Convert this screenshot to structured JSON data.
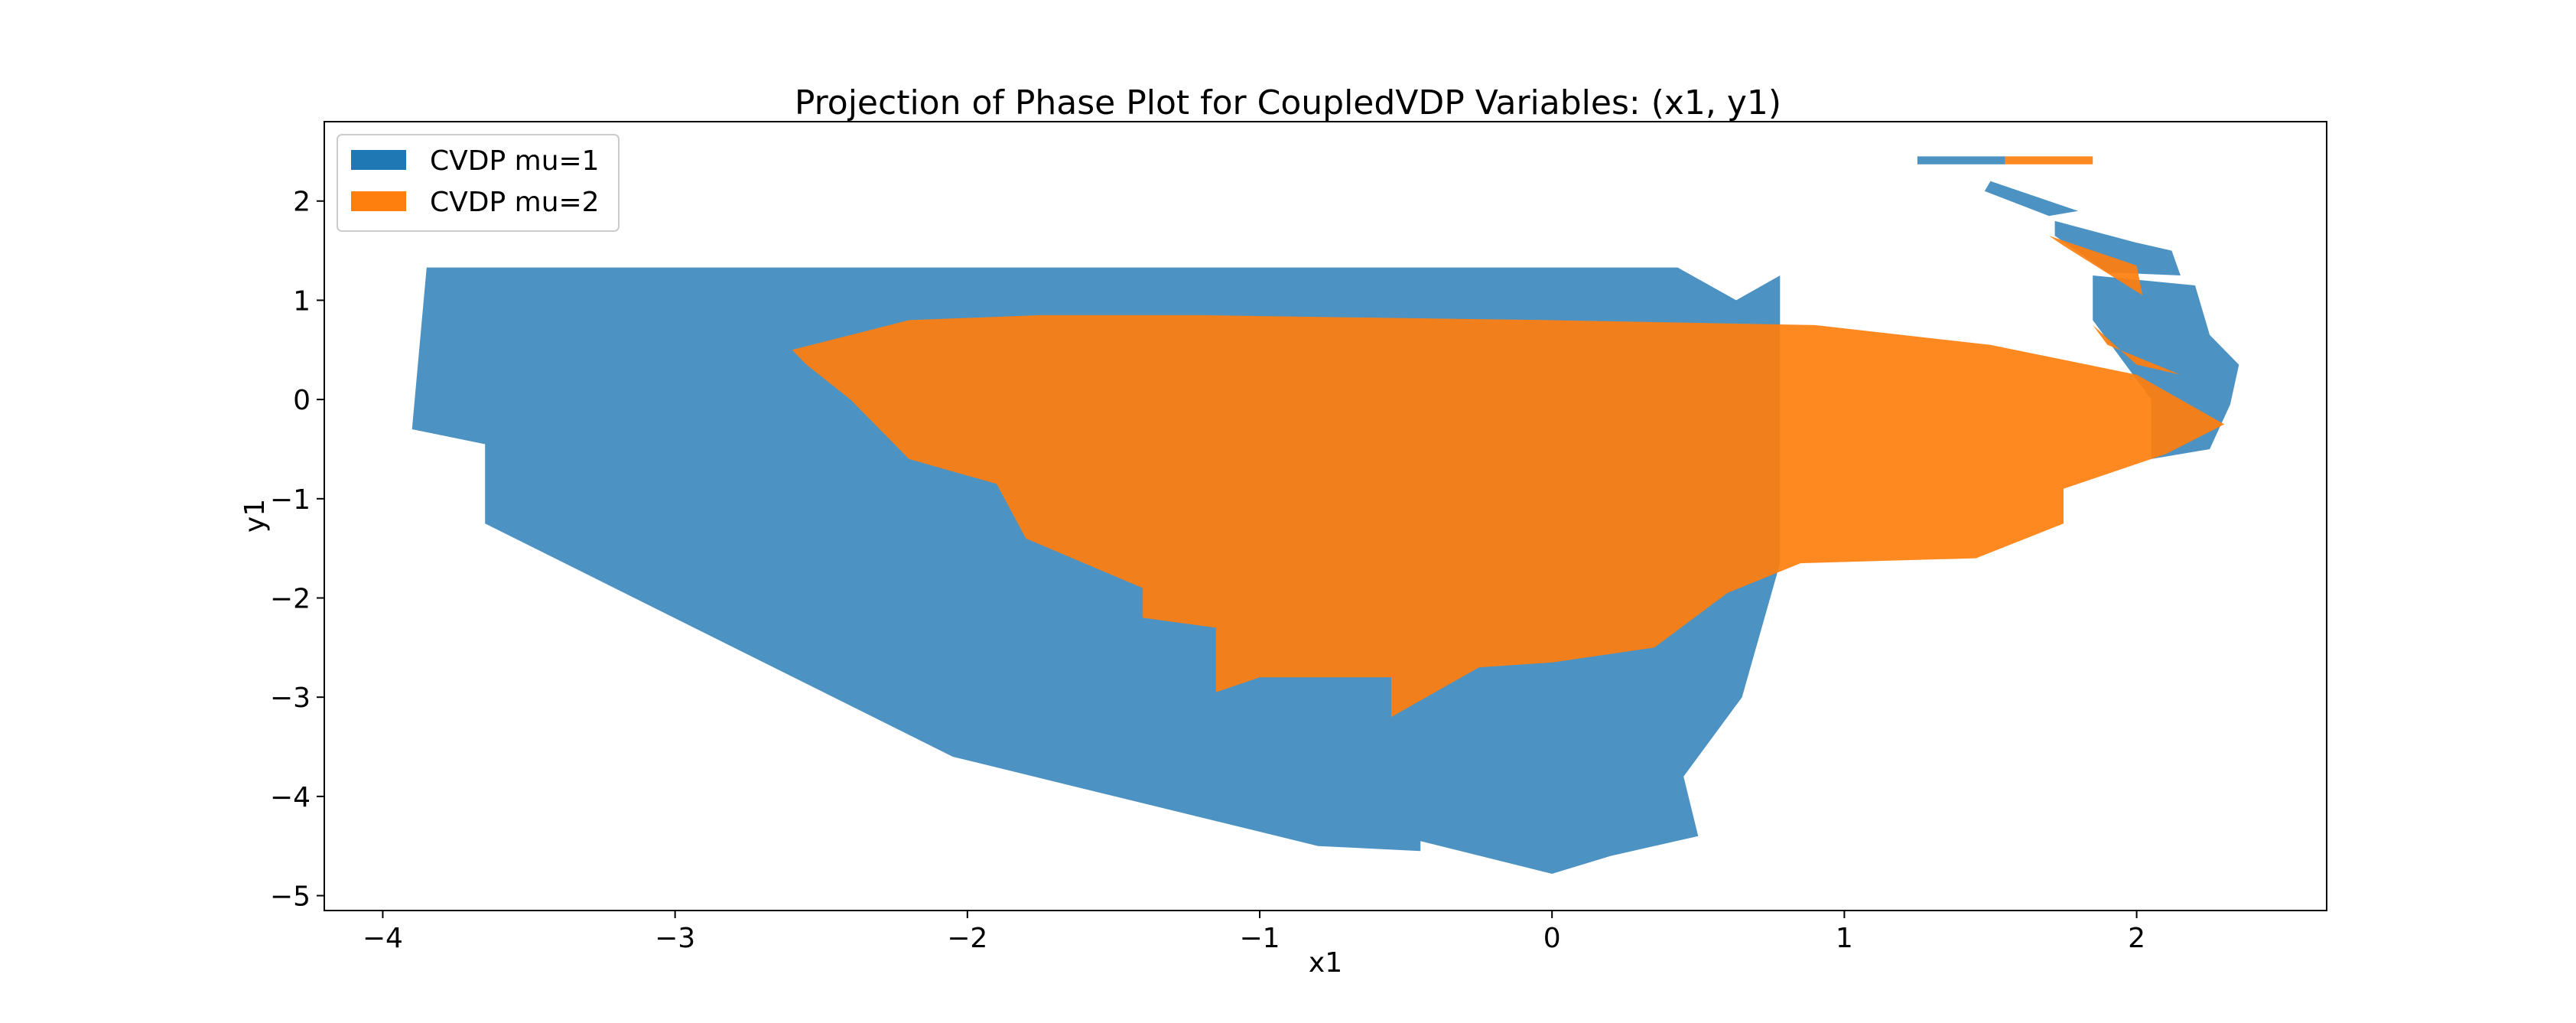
{
  "chart_data": {
    "type": "area",
    "title": "Projection of Phase Plot for CoupledVDP Variables: (x1, y1)",
    "xlabel": "x1",
    "ylabel": "y1",
    "xlim": [
      -4.2,
      2.65
    ],
    "ylim": [
      -5.15,
      2.8
    ],
    "x_ticks": [
      -4,
      -3,
      -2,
      -1,
      0,
      1,
      2
    ],
    "y_ticks": [
      -5,
      -4,
      -3,
      -2,
      -1,
      0,
      1,
      2
    ],
    "x_tick_labels": [
      "−4",
      "−3",
      "−2",
      "−1",
      "0",
      "1",
      "2"
    ],
    "y_tick_labels": [
      "−5",
      "−4",
      "−3",
      "−2",
      "−1",
      "0",
      "1",
      "2"
    ],
    "grid": false,
    "legend_position": "upper-left",
    "series": [
      {
        "name": "CVDP mu=1",
        "color": "#1f77b4",
        "polygons": [
          [
            [
              -3.85,
              1.33
            ],
            [
              0.43,
              1.33
            ],
            [
              0.63,
              1.0
            ],
            [
              0.78,
              1.25
            ],
            [
              0.78,
              -1.65
            ],
            [
              0.65,
              -3.0
            ],
            [
              0.45,
              -3.8
            ],
            [
              0.5,
              -4.4
            ],
            [
              0.2,
              -4.6
            ],
            [
              0.0,
              -4.78
            ],
            [
              -0.45,
              -4.45
            ],
            [
              -0.45,
              -4.55
            ],
            [
              -0.8,
              -4.5
            ],
            [
              -2.05,
              -3.6
            ],
            [
              -3.65,
              -1.25
            ],
            [
              -3.65,
              -0.45
            ],
            [
              -3.9,
              -0.3
            ]
          ],
          [
            [
              1.25,
              2.45
            ],
            [
              1.55,
              2.45
            ],
            [
              1.55,
              2.37
            ],
            [
              1.25,
              2.37
            ]
          ],
          [
            [
              1.5,
              2.2
            ],
            [
              1.8,
              1.9
            ],
            [
              1.7,
              1.85
            ],
            [
              1.48,
              2.1
            ]
          ],
          [
            [
              1.72,
              1.8
            ],
            [
              2.0,
              1.58
            ],
            [
              2.12,
              1.5
            ],
            [
              2.15,
              1.25
            ],
            [
              1.9,
              1.28
            ],
            [
              1.72,
              1.65
            ]
          ],
          [
            [
              1.85,
              1.25
            ],
            [
              2.2,
              1.15
            ],
            [
              2.25,
              0.65
            ],
            [
              2.35,
              0.35
            ],
            [
              2.32,
              -0.05
            ],
            [
              2.25,
              -0.5
            ],
            [
              2.05,
              -0.6
            ],
            [
              2.05,
              0.0
            ],
            [
              1.85,
              0.8
            ]
          ]
        ]
      },
      {
        "name": "CVDP mu=2",
        "color": "#ff7f0e",
        "polygons": [
          [
            [
              -2.6,
              0.5
            ],
            [
              -2.2,
              0.8
            ],
            [
              -1.75,
              0.85
            ],
            [
              -1.2,
              0.85
            ],
            [
              -0.5,
              0.82
            ],
            [
              0.0,
              0.8
            ],
            [
              0.9,
              0.75
            ],
            [
              1.5,
              0.55
            ],
            [
              2.0,
              0.25
            ],
            [
              2.3,
              -0.25
            ],
            [
              2.1,
              -0.55
            ],
            [
              1.75,
              -0.9
            ],
            [
              1.75,
              -1.25
            ],
            [
              1.45,
              -1.6
            ],
            [
              0.85,
              -1.65
            ],
            [
              0.6,
              -1.95
            ],
            [
              0.35,
              -2.5
            ],
            [
              0.0,
              -2.65
            ],
            [
              -0.25,
              -2.7
            ],
            [
              -0.55,
              -3.2
            ],
            [
              -0.55,
              -2.8
            ],
            [
              -1.0,
              -2.8
            ],
            [
              -1.15,
              -2.95
            ],
            [
              -1.15,
              -2.3
            ],
            [
              -1.4,
              -2.2
            ],
            [
              -1.4,
              -1.9
            ],
            [
              -1.8,
              -1.4
            ],
            [
              -1.9,
              -0.85
            ],
            [
              -2.2,
              -0.6
            ],
            [
              -2.4,
              0.0
            ],
            [
              -2.55,
              0.35
            ]
          ],
          [
            [
              1.55,
              2.45
            ],
            [
              1.85,
              2.45
            ],
            [
              1.85,
              2.37
            ],
            [
              1.55,
              2.37
            ]
          ],
          [
            [
              1.7,
              1.65
            ],
            [
              2.0,
              1.35
            ],
            [
              2.02,
              1.05
            ],
            [
              1.75,
              1.55
            ]
          ],
          [
            [
              1.85,
              0.75
            ],
            [
              2.0,
              0.35
            ],
            [
              2.15,
              0.25
            ],
            [
              1.9,
              0.55
            ]
          ]
        ]
      }
    ]
  }
}
